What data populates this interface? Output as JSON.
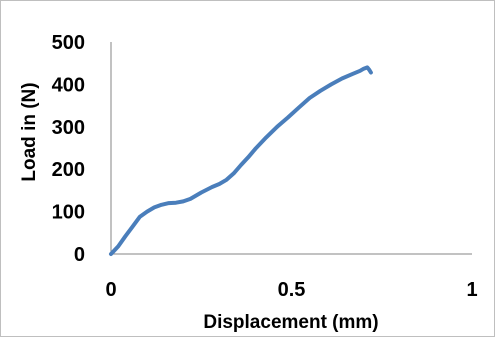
{
  "chart_data": {
    "type": "line",
    "title": "",
    "xlabel": "Displacement (mm)",
    "ylabel": "Load in (N)",
    "xlim": [
      0,
      1
    ],
    "ylim": [
      0,
      500
    ],
    "x_ticks": [
      0,
      0.5,
      1
    ],
    "x_tick_labels": [
      "0",
      "0.5",
      "1"
    ],
    "y_ticks": [
      0,
      100,
      200,
      300,
      400,
      500
    ],
    "y_tick_labels": [
      "0",
      "100",
      "200",
      "300",
      "400",
      "500"
    ],
    "grid": false,
    "legend": "none",
    "series": [
      {
        "color": "#4a7ebb",
        "x": [
          0,
          0.02,
          0.04,
          0.06,
          0.08,
          0.1,
          0.12,
          0.14,
          0.16,
          0.18,
          0.2,
          0.22,
          0.25,
          0.28,
          0.3,
          0.32,
          0.34,
          0.36,
          0.38,
          0.4,
          0.43,
          0.46,
          0.49,
          0.52,
          0.55,
          0.58,
          0.61,
          0.64,
          0.67,
          0.69,
          0.7,
          0.71,
          0.715,
          0.72
        ],
        "y": [
          0,
          18,
          42,
          65,
          88,
          100,
          110,
          116,
          120,
          121,
          124,
          130,
          145,
          158,
          165,
          175,
          190,
          210,
          228,
          248,
          275,
          300,
          322,
          345,
          368,
          385,
          400,
          414,
          425,
          432,
          437,
          440,
          435,
          428
        ]
      }
    ]
  }
}
